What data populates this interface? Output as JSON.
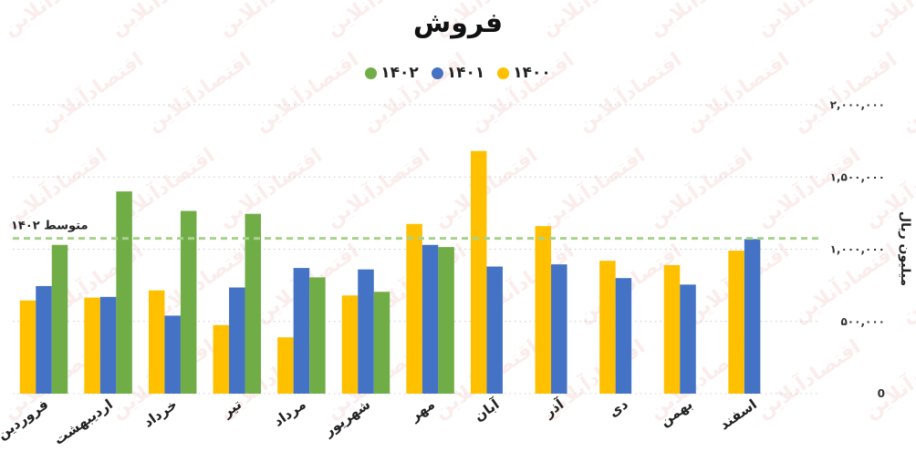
{
  "chart_data": {
    "type": "bar",
    "title": "فروش",
    "ylabel": "میلیون ریال",
    "ylim": [
      0,
      2000000
    ],
    "y_ticks": [
      0,
      500000,
      1000000,
      1500000,
      2000000
    ],
    "y_tick_labels": [
      "0",
      "۵۰۰,۰۰۰",
      "۱,۰۰۰,۰۰۰",
      "۱,۵۰۰,۰۰۰",
      "۲,۰۰۰,۰۰۰"
    ],
    "grid": true,
    "legend_position": "top",
    "categories": [
      "فروردین",
      "اردیبهشت",
      "خرداد",
      "تیر",
      "مرداد",
      "شهریور",
      "مهر",
      "آبان",
      "آذر",
      "دی",
      "بهمن",
      "اسفند"
    ],
    "series": [
      {
        "name": "۱۴۰۰",
        "color": "#FFC000",
        "values": [
          645000,
          665000,
          715000,
          475000,
          390000,
          680000,
          1175000,
          1680000,
          1160000,
          920000,
          890000,
          990000
        ]
      },
      {
        "name": "۱۴۰۱",
        "color": "#4472C4",
        "values": [
          745000,
          670000,
          540000,
          735000,
          870000,
          860000,
          1030000,
          880000,
          895000,
          800000,
          755000,
          1070000
        ]
      },
      {
        "name": "۱۴۰۲",
        "color": "#70AD47",
        "values": [
          1030000,
          1400000,
          1265000,
          1245000,
          805000,
          705000,
          1015000,
          null,
          null,
          null,
          null,
          null
        ]
      }
    ],
    "reference_line": {
      "label": "متوسط ۱۴۰۲",
      "value": 1075000,
      "color": "#A9D18E"
    },
    "watermark": "اقتصادآنلاین"
  }
}
